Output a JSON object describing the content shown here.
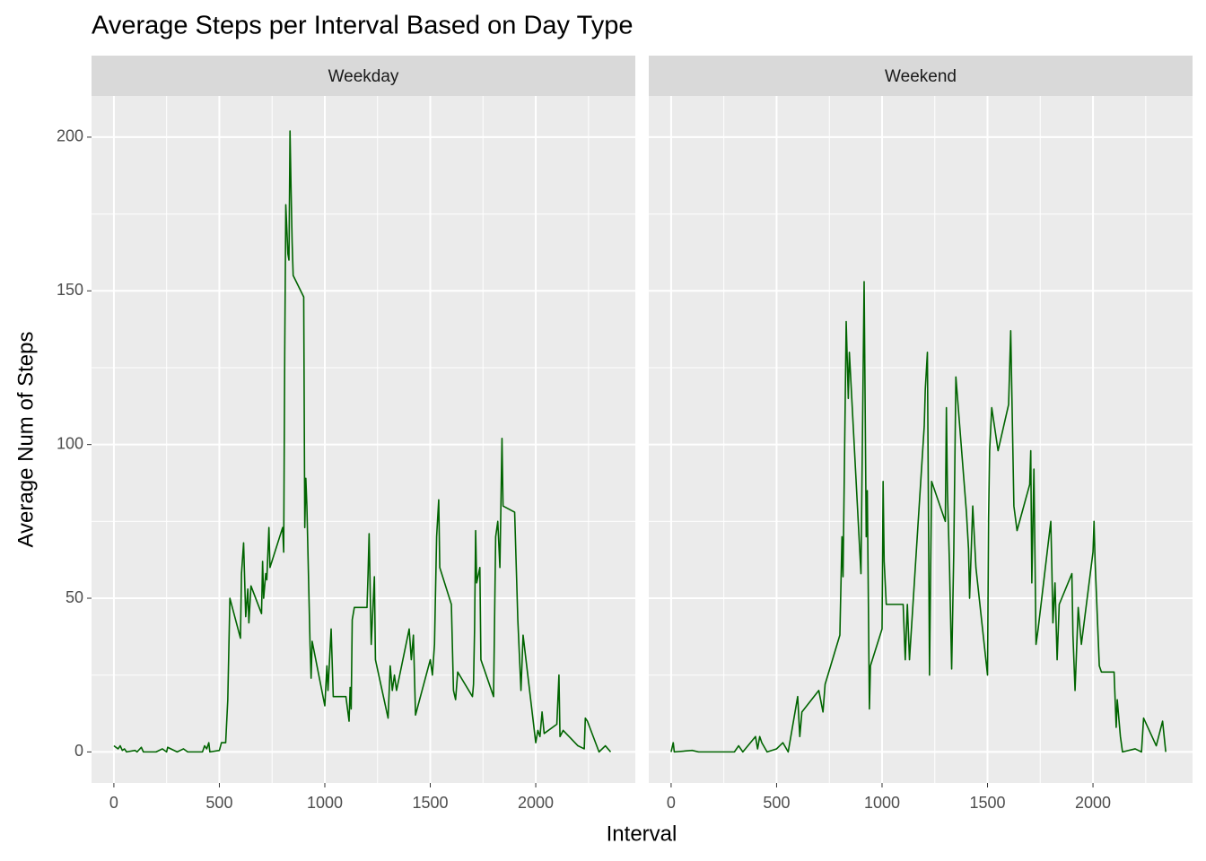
{
  "chart_data": {
    "type": "line",
    "title": "Average Steps per Interval Based on Day Type",
    "x_label": "Interval",
    "y_label": "Average Num of Steps",
    "color": "#006400",
    "grid": true,
    "xlim": [
      -106,
      2472
    ],
    "ylim": [
      -10.1,
      213.4
    ],
    "xticks": [
      0,
      500,
      1000,
      1500,
      2000
    ],
    "yticks": [
      0,
      50,
      100,
      150,
      200
    ],
    "xminor": [
      250,
      750,
      1250,
      1750,
      2250
    ],
    "yminor": [
      25,
      75,
      125,
      175
    ],
    "facets": [
      {
        "name": "Weekday",
        "x": [
          0,
          20,
          30,
          40,
          50,
          60,
          100,
          110,
          130,
          140,
          200,
          230,
          250,
          255,
          300,
          330,
          350,
          420,
          430,
          440,
          450,
          455,
          500,
          510,
          530,
          540,
          550,
          600,
          605,
          615,
          625,
          635,
          640,
          650,
          700,
          705,
          710,
          720,
          725,
          735,
          740,
          800,
          805,
          810,
          815,
          820,
          825,
          830,
          835,
          840,
          845,
          850,
          900,
          905,
          910,
          915,
          930,
          935,
          940,
          1000,
          1010,
          1015,
          1030,
          1040,
          1100,
          1115,
          1120,
          1125,
          1130,
          1140,
          1200,
          1205,
          1210,
          1220,
          1235,
          1240,
          1300,
          1310,
          1320,
          1330,
          1340,
          1400,
          1410,
          1420,
          1430,
          1500,
          1510,
          1520,
          1530,
          1540,
          1545,
          1600,
          1610,
          1620,
          1630,
          1700,
          1705,
          1710,
          1715,
          1720,
          1735,
          1740,
          1800,
          1810,
          1820,
          1830,
          1840,
          1845,
          1900,
          1915,
          1930,
          1940,
          2000,
          2010,
          2020,
          2030,
          2040,
          2100,
          2110,
          2115,
          2130,
          2200,
          2230,
          2235,
          2245,
          2300,
          2330,
          2355
        ],
        "values": [
          2,
          1,
          2,
          0.5,
          1,
          0,
          0.5,
          0,
          1.5,
          0,
          0,
          1,
          0,
          1.5,
          0,
          1,
          0,
          0,
          2,
          1,
          3,
          0,
          0.5,
          3,
          3,
          17,
          50,
          37,
          58,
          68,
          44,
          53,
          42,
          54,
          45,
          62,
          50,
          58,
          56,
          73,
          60,
          73,
          65,
          130,
          178,
          170,
          162,
          160,
          202,
          183,
          166,
          155,
          148,
          73,
          89,
          80,
          35,
          24,
          36,
          15,
          28,
          20,
          40,
          18,
          18,
          10,
          21,
          14,
          43,
          47,
          47,
          58,
          71,
          35,
          57,
          30,
          11,
          28,
          20,
          25,
          20,
          40,
          30,
          38,
          12,
          30,
          25,
          35,
          70,
          82,
          60,
          48,
          20,
          17,
          26,
          18,
          22,
          40,
          72,
          55,
          60,
          30,
          18,
          70,
          75,
          60,
          102,
          80,
          78,
          43,
          20,
          38,
          3,
          7,
          5,
          13,
          6,
          9,
          25,
          5,
          7,
          2,
          1,
          11,
          10,
          0,
          2,
          0
        ]
      },
      {
        "name": "Weekend",
        "x": [
          0,
          10,
          15,
          100,
          130,
          300,
          320,
          340,
          400,
          410,
          420,
          430,
          455,
          500,
          530,
          555,
          600,
          610,
          620,
          700,
          720,
          730,
          800,
          810,
          815,
          825,
          830,
          840,
          845,
          900,
          915,
          925,
          930,
          940,
          945,
          1000,
          1005,
          1010,
          1020,
          1100,
          1110,
          1120,
          1130,
          1200,
          1205,
          1215,
          1225,
          1235,
          1300,
          1305,
          1310,
          1320,
          1330,
          1340,
          1350,
          1400,
          1410,
          1415,
          1430,
          1445,
          1500,
          1505,
          1510,
          1520,
          1550,
          1600,
          1610,
          1625,
          1640,
          1700,
          1705,
          1710,
          1720,
          1730,
          1740,
          1800,
          1805,
          1810,
          1820,
          1830,
          1840,
          1900,
          1905,
          1915,
          1930,
          1945,
          2000,
          2005,
          2010,
          2020,
          2030,
          2040,
          2100,
          2110,
          2115,
          2130,
          2140,
          2200,
          2230,
          2240,
          2300,
          2330,
          2345
        ],
        "values": [
          0,
          3,
          0,
          0.5,
          0,
          0,
          2,
          0,
          5,
          1,
          5,
          3,
          0,
          1,
          3,
          0,
          18,
          5,
          13,
          20,
          13,
          22,
          38,
          70,
          57,
          112,
          140,
          115,
          130,
          58,
          153,
          70,
          85,
          14,
          28,
          40,
          88,
          62,
          48,
          48,
          30,
          48,
          30,
          106,
          118,
          130,
          25,
          88,
          75,
          112,
          85,
          60,
          27,
          65,
          122,
          78,
          66,
          50,
          80,
          60,
          25,
          76,
          98,
          112,
          98,
          113,
          137,
          80,
          72,
          87,
          98,
          55,
          92,
          35,
          40,
          75,
          60,
          42,
          55,
          30,
          48,
          58,
          38,
          20,
          47,
          35,
          65,
          75,
          62,
          45,
          28,
          26,
          26,
          8,
          17,
          5,
          0,
          1,
          0,
          11,
          2,
          10,
          0
        ]
      }
    ]
  }
}
